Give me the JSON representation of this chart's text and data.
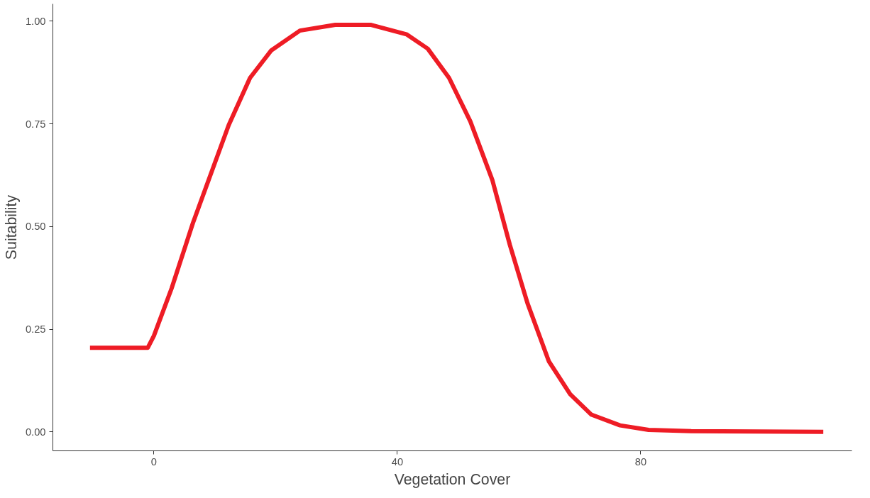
{
  "chart_data": {
    "type": "line",
    "xlabel": "Vegetation Cover",
    "ylabel": "Suitability",
    "x": [
      -10.5,
      -1,
      0,
      2.9,
      6.4,
      9.9,
      12.3,
      15.8,
      19.3,
      24,
      29.8,
      35.7,
      41.5,
      45,
      48.5,
      52,
      55.6,
      58.5,
      61.4,
      64.9,
      68.4,
      71.9,
      76.6,
      81.3,
      88.3,
      110
    ],
    "series": [
      {
        "color": "#ee1c25",
        "values": [
          0.205,
          0.205,
          0.234,
          0.349,
          0.508,
          0.65,
          0.747,
          0.862,
          0.929,
          0.977,
          0.991,
          0.991,
          0.968,
          0.933,
          0.862,
          0.756,
          0.614,
          0.455,
          0.313,
          0.172,
          0.092,
          0.042,
          0.016,
          0.005,
          0.002,
          0.0
        ]
      }
    ],
    "xlim": [
      -16.6,
      114.7
    ],
    "ylim": [
      -0.046,
      1.042
    ],
    "xticks": [
      0,
      40,
      80
    ],
    "yticks": [
      {
        "value": 0,
        "label": "0.00"
      },
      {
        "value": 0.25,
        "label": "0.25"
      },
      {
        "value": 0.5,
        "label": "0.50"
      },
      {
        "value": 0.75,
        "label": "0.75"
      },
      {
        "value": 1,
        "label": "1.00"
      }
    ],
    "grid": false,
    "marker": "none",
    "line_style": "solid"
  }
}
